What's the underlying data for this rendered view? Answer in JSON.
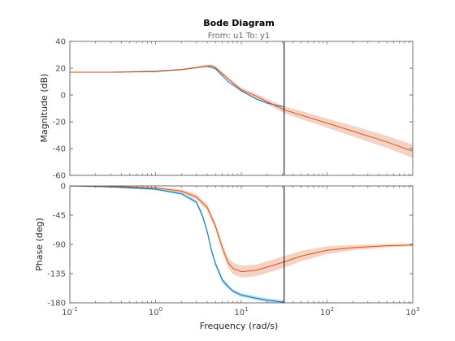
{
  "chart_data": {
    "type": "line",
    "title": "Bode Diagram",
    "subtitle": "From: u1  To: y1",
    "xlabel": "Frequency  (rad/s)",
    "xscale": "log",
    "xlim": [
      0.1,
      1000
    ],
    "x_tick_labels": [
      {
        "base": "10",
        "exp": "-1",
        "value": 0.1
      },
      {
        "base": "10",
        "exp": "0",
        "value": 1
      },
      {
        "base": "10",
        "exp": "1",
        "value": 10
      },
      {
        "base": "10",
        "exp": "2",
        "value": 100
      },
      {
        "base": "10",
        "exp": "3",
        "value": 1000
      }
    ],
    "vertical_marker": 31.6,
    "colors": {
      "model": "#d95319",
      "model_band": "#f2c4b0",
      "estimate": "#0072bd",
      "estimate_band": "#a6d4ee",
      "marker": "#000000",
      "axis": "#4d4d4d"
    },
    "panels": [
      {
        "name": "magnitude",
        "ylabel": "Magnitude (dB)",
        "ylim": [
          -60,
          40
        ],
        "yticks": [
          "40",
          "20",
          "0",
          "-20",
          "-40",
          "-60"
        ],
        "series": [
          {
            "role": "estimate",
            "x": [
              0.1,
              0.3,
              1,
              2,
              3,
              4,
              5,
              7,
              10,
              15,
              20,
              25,
              31.6
            ],
            "values": [
              17,
              17,
              17.5,
              19,
              20.5,
              21.5,
              19.5,
              10,
              3,
              -3,
              -6,
              -7.5,
              -9
            ]
          },
          {
            "role": "model",
            "x": [
              0.1,
              0.3,
              1,
              2,
              3,
              4,
              4.5,
              5,
              6,
              8,
              10,
              15,
              20,
              31.6,
              50,
              100,
              200,
              500,
              1000
            ],
            "values": [
              17,
              17,
              17.8,
              19,
              20.5,
              21.7,
              21.8,
              20.5,
              16,
              9,
              4,
              -1,
              -5,
              -11,
              -15,
              -21,
              -27,
              -35,
              -42
            ],
            "band": [
              0.4,
              0.4,
              0.5,
              0.6,
              0.8,
              1.0,
              1.0,
              1.0,
              1.1,
              1.2,
              1.4,
              1.8,
              2.1,
              2.6,
              3.0,
              3.5,
              4.0,
              4.5,
              5.0
            ]
          }
        ]
      },
      {
        "name": "phase",
        "ylabel": "Phase (deg)",
        "ylim": [
          -180,
          0
        ],
        "yticks": [
          "0",
          "-45",
          "-90",
          "-135",
          "-180"
        ],
        "series": [
          {
            "role": "estimate",
            "x": [
              0.1,
              0.3,
              1,
              2,
              3,
              3.5,
              4,
              4.5,
              5,
              6,
              7,
              8,
              10,
              15,
              20,
              31.6
            ],
            "values": [
              0,
              -1.5,
              -5,
              -12,
              -25,
              -45,
              -70,
              -100,
              -120,
              -145,
              -155,
              -162,
              -168,
              -173,
              -176,
              -179
            ],
            "band": [
              1,
              1,
              1.5,
              2,
              3,
              4,
              4,
              4,
              4,
              4,
              3.5,
              3,
              3,
              3,
              3,
              3
            ]
          },
          {
            "role": "model",
            "x": [
              0.1,
              0.3,
              1,
              2,
              3,
              4,
              5,
              6,
              7,
              8,
              10,
              15,
              20,
              31.6,
              50,
              100,
              200,
              500,
              1000
            ],
            "values": [
              0,
              -0.5,
              -3,
              -8,
              -17,
              -33,
              -62,
              -95,
              -118,
              -127,
              -132,
              -130,
              -125,
              -117,
              -108,
              -99,
              -95,
              -92,
              -91
            ],
            "band": [
              0.5,
              0.8,
              1.5,
              2.5,
              4,
              5,
              6,
              7,
              8,
              9,
              9,
              9,
              9,
              9,
              8,
              6,
              4,
              2.5,
              2
            ]
          }
        ]
      }
    ]
  }
}
